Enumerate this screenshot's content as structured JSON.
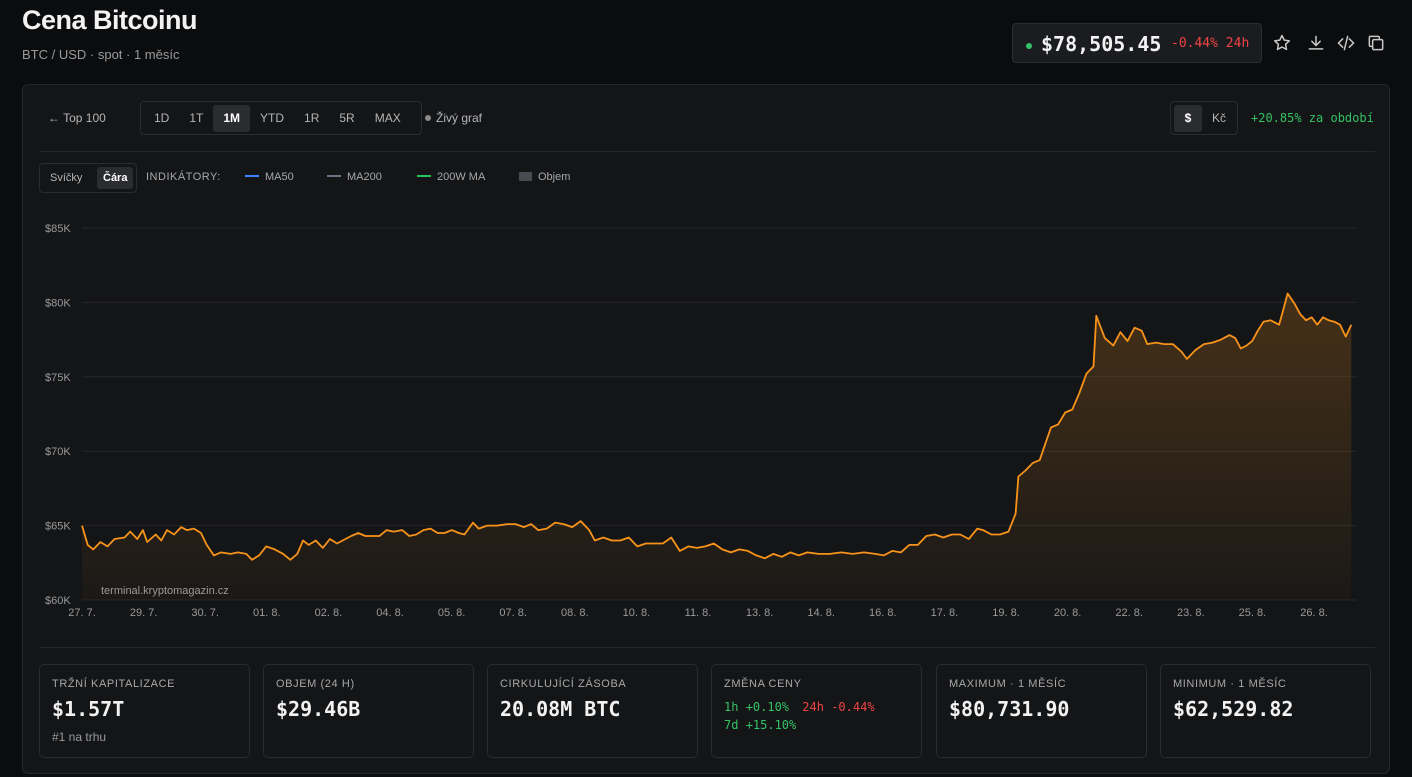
{
  "header": {
    "title": "Cena Bitcoinu",
    "subtitle": "BTC / USD · spot · 1 měsíc",
    "price": "$78,505.45",
    "change_24h": "-0.44% 24h",
    "icons": [
      "star-icon",
      "download-icon",
      "code-icon",
      "copy-icon"
    ]
  },
  "toolbar": {
    "back": "← Top 100",
    "ranges": [
      "1D",
      "1T",
      "1M",
      "YTD",
      "1R",
      "5R",
      "MAX"
    ],
    "active_range": "1M",
    "live": "Živý graf",
    "currency_usd": "$",
    "currency_czk": "Kč",
    "period_change": "+20.85% za období"
  },
  "indicators": {
    "type_candles": "Svíčky",
    "type_line": "Čára",
    "label": "INDIKÁTORY:",
    "ma50": "MA50",
    "ma200": "MA200",
    "ma200w": "200W MA",
    "volume": "Objem",
    "colors": {
      "ma50": "#3b82f6",
      "ma200": "#6b7280",
      "ma200w": "#22c55e"
    }
  },
  "watermark": "terminal.kryptomagazin.cz",
  "chart_data": {
    "type": "area",
    "color": "#f7931a",
    "y_ticks": [
      "$60K",
      "$65K",
      "$70K",
      "$75K",
      "$80K",
      "$85K"
    ],
    "ylim": [
      60000,
      85000
    ],
    "x_ticks": [
      "27. 7.",
      "29. 7.",
      "30. 7.",
      "01. 8.",
      "02. 8.",
      "04. 8.",
      "05. 8.",
      "07. 8.",
      "08. 8.",
      "10. 8.",
      "11. 8.",
      "13. 8.",
      "14. 8.",
      "16. 8.",
      "17. 8.",
      "19. 8.",
      "20. 8.",
      "22. 8.",
      "23. 8.",
      "25. 8.",
      "26. 8."
    ],
    "series": [
      {
        "points": [
          [
            0,
            65000
          ],
          [
            0.4,
            63700
          ],
          [
            0.8,
            63400
          ],
          [
            1.3,
            63900
          ],
          [
            1.8,
            63600
          ],
          [
            2.3,
            64100
          ],
          [
            3.0,
            64200
          ],
          [
            3.4,
            64600
          ],
          [
            3.9,
            64100
          ],
          [
            4.3,
            64700
          ],
          [
            4.6,
            63900
          ],
          [
            5.2,
            64400
          ],
          [
            5.6,
            64000
          ],
          [
            6.0,
            64700
          ],
          [
            6.5,
            64400
          ],
          [
            7.0,
            64900
          ],
          [
            7.4,
            64700
          ],
          [
            7.9,
            64800
          ],
          [
            8.4,
            64500
          ],
          [
            8.8,
            63700
          ],
          [
            9.3,
            63000
          ],
          [
            9.8,
            63200
          ],
          [
            10.5,
            63100
          ],
          [
            11.0,
            63200
          ],
          [
            11.6,
            63100
          ],
          [
            12.0,
            62700
          ],
          [
            12.5,
            63000
          ],
          [
            13.0,
            63600
          ],
          [
            13.6,
            63400
          ],
          [
            14.2,
            63100
          ],
          [
            14.7,
            62700
          ],
          [
            15.2,
            63100
          ],
          [
            15.6,
            64000
          ],
          [
            16.0,
            63700
          ],
          [
            16.5,
            64000
          ],
          [
            17.0,
            63500
          ],
          [
            17.5,
            64100
          ],
          [
            18.0,
            63800
          ],
          [
            18.6,
            64100
          ],
          [
            19.0,
            64300
          ],
          [
            19.5,
            64500
          ],
          [
            20.0,
            64300
          ],
          [
            20.5,
            64300
          ],
          [
            21.0,
            64300
          ],
          [
            21.5,
            64700
          ],
          [
            22.0,
            64600
          ],
          [
            22.6,
            64700
          ],
          [
            23.1,
            64300
          ],
          [
            23.6,
            64400
          ],
          [
            24.1,
            64700
          ],
          [
            24.6,
            64800
          ],
          [
            25.1,
            64500
          ],
          [
            25.6,
            64500
          ],
          [
            26.1,
            64700
          ],
          [
            26.6,
            64500
          ],
          [
            27.0,
            64400
          ],
          [
            27.6,
            65200
          ],
          [
            28.0,
            64800
          ],
          [
            28.6,
            65000
          ],
          [
            29.3,
            65000
          ],
          [
            30.0,
            65100
          ],
          [
            30.6,
            65100
          ],
          [
            31.2,
            64900
          ],
          [
            31.7,
            65100
          ],
          [
            32.2,
            64700
          ],
          [
            32.8,
            64800
          ],
          [
            33.4,
            65200
          ],
          [
            34.0,
            65100
          ],
          [
            34.6,
            64900
          ],
          [
            35.2,
            65300
          ],
          [
            35.8,
            64700
          ],
          [
            36.2,
            64000
          ],
          [
            36.8,
            64200
          ],
          [
            37.4,
            64000
          ],
          [
            38.0,
            64000
          ],
          [
            38.6,
            64200
          ],
          [
            39.2,
            63600
          ],
          [
            39.8,
            63800
          ],
          [
            40.4,
            63800
          ],
          [
            41.0,
            63800
          ],
          [
            41.6,
            64200
          ],
          [
            42.2,
            63300
          ],
          [
            42.8,
            63600
          ],
          [
            43.4,
            63500
          ],
          [
            44.0,
            63600
          ],
          [
            44.6,
            63800
          ],
          [
            45.2,
            63400
          ],
          [
            45.8,
            63200
          ],
          [
            46.4,
            63400
          ],
          [
            47.0,
            63300
          ],
          [
            47.6,
            63000
          ],
          [
            48.2,
            62800
          ],
          [
            48.8,
            63100
          ],
          [
            49.4,
            62900
          ],
          [
            50.0,
            63200
          ],
          [
            50.6,
            63000
          ],
          [
            51.2,
            63200
          ],
          [
            52.0,
            63100
          ],
          [
            52.8,
            63100
          ],
          [
            53.6,
            63200
          ],
          [
            54.4,
            63100
          ],
          [
            55.2,
            63200
          ],
          [
            56.0,
            63100
          ],
          [
            56.6,
            63000
          ],
          [
            57.2,
            63300
          ],
          [
            57.8,
            63200
          ],
          [
            58.4,
            63700
          ],
          [
            59.0,
            63700
          ],
          [
            59.6,
            64300
          ],
          [
            60.2,
            64400
          ],
          [
            60.8,
            64200
          ],
          [
            61.4,
            64400
          ],
          [
            62.0,
            64400
          ],
          [
            62.6,
            64100
          ],
          [
            63.2,
            64800
          ],
          [
            63.6,
            64700
          ],
          [
            64.2,
            64400
          ],
          [
            64.8,
            64400
          ],
          [
            65.4,
            64600
          ],
          [
            65.9,
            65800
          ],
          [
            66.1,
            68300
          ],
          [
            66.6,
            68700
          ],
          [
            67.1,
            69200
          ],
          [
            67.6,
            69400
          ],
          [
            68.0,
            70500
          ],
          [
            68.4,
            71600
          ],
          [
            68.9,
            71800
          ],
          [
            69.4,
            72600
          ],
          [
            69.9,
            72800
          ],
          [
            70.4,
            73900
          ],
          [
            70.9,
            75200
          ],
          [
            71.4,
            75700
          ],
          [
            71.6,
            79100
          ],
          [
            72.2,
            77600
          ],
          [
            72.8,
            77100
          ],
          [
            73.3,
            78000
          ],
          [
            73.8,
            77400
          ],
          [
            74.3,
            78300
          ],
          [
            74.8,
            78100
          ],
          [
            75.2,
            77200
          ],
          [
            75.8,
            77300
          ],
          [
            76.4,
            77200
          ],
          [
            77.0,
            77200
          ],
          [
            77.6,
            76700
          ],
          [
            78.0,
            76200
          ],
          [
            78.6,
            76800
          ],
          [
            79.2,
            77200
          ],
          [
            79.8,
            77300
          ],
          [
            80.4,
            77500
          ],
          [
            81.0,
            77800
          ],
          [
            81.4,
            77600
          ],
          [
            81.8,
            76900
          ],
          [
            82.2,
            77100
          ],
          [
            82.6,
            77400
          ],
          [
            83.0,
            78100
          ],
          [
            83.4,
            78700
          ],
          [
            83.9,
            78800
          ],
          [
            84.5,
            78500
          ],
          [
            84.8,
            79500
          ],
          [
            85.1,
            80600
          ],
          [
            85.6,
            79900
          ],
          [
            86.0,
            79200
          ],
          [
            86.4,
            78800
          ],
          [
            86.8,
            79000
          ],
          [
            87.2,
            78500
          ],
          [
            87.6,
            79000
          ],
          [
            88.0,
            78800
          ],
          [
            88.4,
            78700
          ],
          [
            88.8,
            78500
          ],
          [
            89.2,
            77700
          ],
          [
            89.6,
            78500
          ]
        ]
      }
    ],
    "x_max": 90
  },
  "stats": [
    {
      "label": "TRŽNÍ KAPITALIZACE",
      "value": "$1.57T",
      "sub": "#1 na trhu"
    },
    {
      "label": "OBJEM (24 H)",
      "value": "$29.46B"
    },
    {
      "label": "CIRKULUJÍCÍ ZÁSOBA",
      "value": "20.08M BTC"
    },
    {
      "label": "ZMĚNA CENY",
      "h1_label": "1h",
      "h1": "+0.10%",
      "h24_label": "24h",
      "h24": "-0.44%",
      "d7_label": "7d",
      "d7": "+15.10%"
    },
    {
      "label": "MAXIMUM · 1 MĚSÍC",
      "value": "$80,731.90"
    },
    {
      "label": "MINIMUM · 1 MĚSÍC",
      "value": "$62,529.82"
    }
  ]
}
